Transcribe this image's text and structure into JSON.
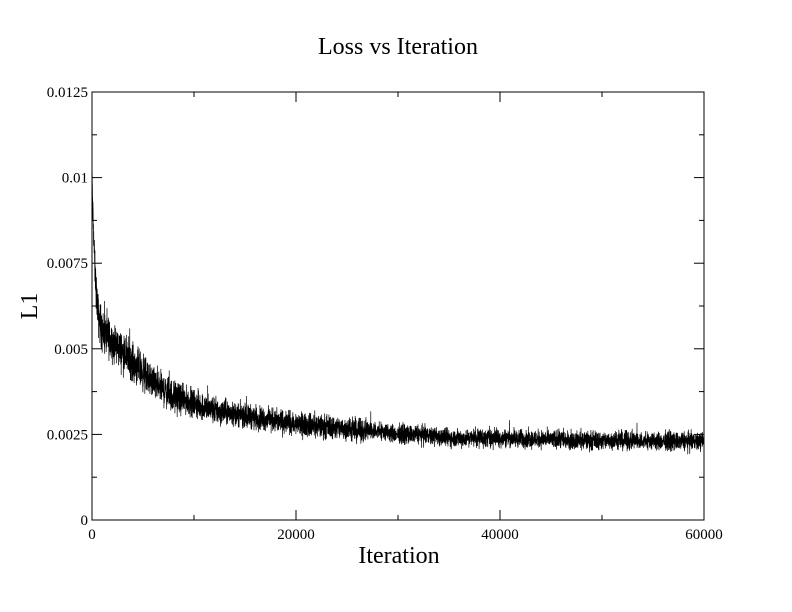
{
  "chart_data": {
    "type": "line",
    "title": "Loss vs Iteration",
    "xlabel": "Iteration",
    "ylabel": "L1",
    "xlim": [
      0,
      60000
    ],
    "ylim": [
      0,
      0.0125
    ],
    "xticks": [
      "0",
      "20000",
      "40000",
      "60000"
    ],
    "yticks": [
      "0",
      "0.0025",
      "0.005",
      "0.0075",
      "0.01",
      "0.0125"
    ],
    "grid": false,
    "legend": "none",
    "series": [
      {
        "color": "#000000",
        "x": [
          0,
          100,
          300,
          600,
          1000,
          2000,
          3000,
          4000,
          5000,
          6000,
          7000,
          8000,
          9000,
          10000,
          12000,
          14000,
          16000,
          18000,
          20000,
          22000,
          24000,
          26000,
          28000,
          30000,
          32000,
          35000,
          40000,
          45000,
          50000,
          55000,
          60000
        ],
        "y": [
          0.0102,
          0.0088,
          0.0072,
          0.006,
          0.0055,
          0.0052,
          0.0049,
          0.0046,
          0.0043,
          0.004,
          0.0038,
          0.0036,
          0.0035,
          0.0034,
          0.0032,
          0.0031,
          0.003,
          0.0029,
          0.0028,
          0.00275,
          0.0027,
          0.0026,
          0.0026,
          0.0025,
          0.0025,
          0.0024,
          0.0024,
          0.00235,
          0.00232,
          0.0023,
          0.0023
        ],
        "noise_amplitude": [
          0.0004,
          0.0008,
          0.0008,
          0.0009,
          0.0009,
          0.0009,
          0.0008,
          0.0008,
          0.0008,
          0.0007,
          0.0007,
          0.0007,
          0.0006,
          0.0006,
          0.0006,
          0.0005,
          0.0005,
          0.0005,
          0.0005,
          0.0005,
          0.0005,
          0.0005,
          0.0004,
          0.0004,
          0.0004,
          0.0004,
          0.0004,
          0.0004,
          0.0004,
          0.0004,
          0.0004
        ]
      }
    ]
  }
}
